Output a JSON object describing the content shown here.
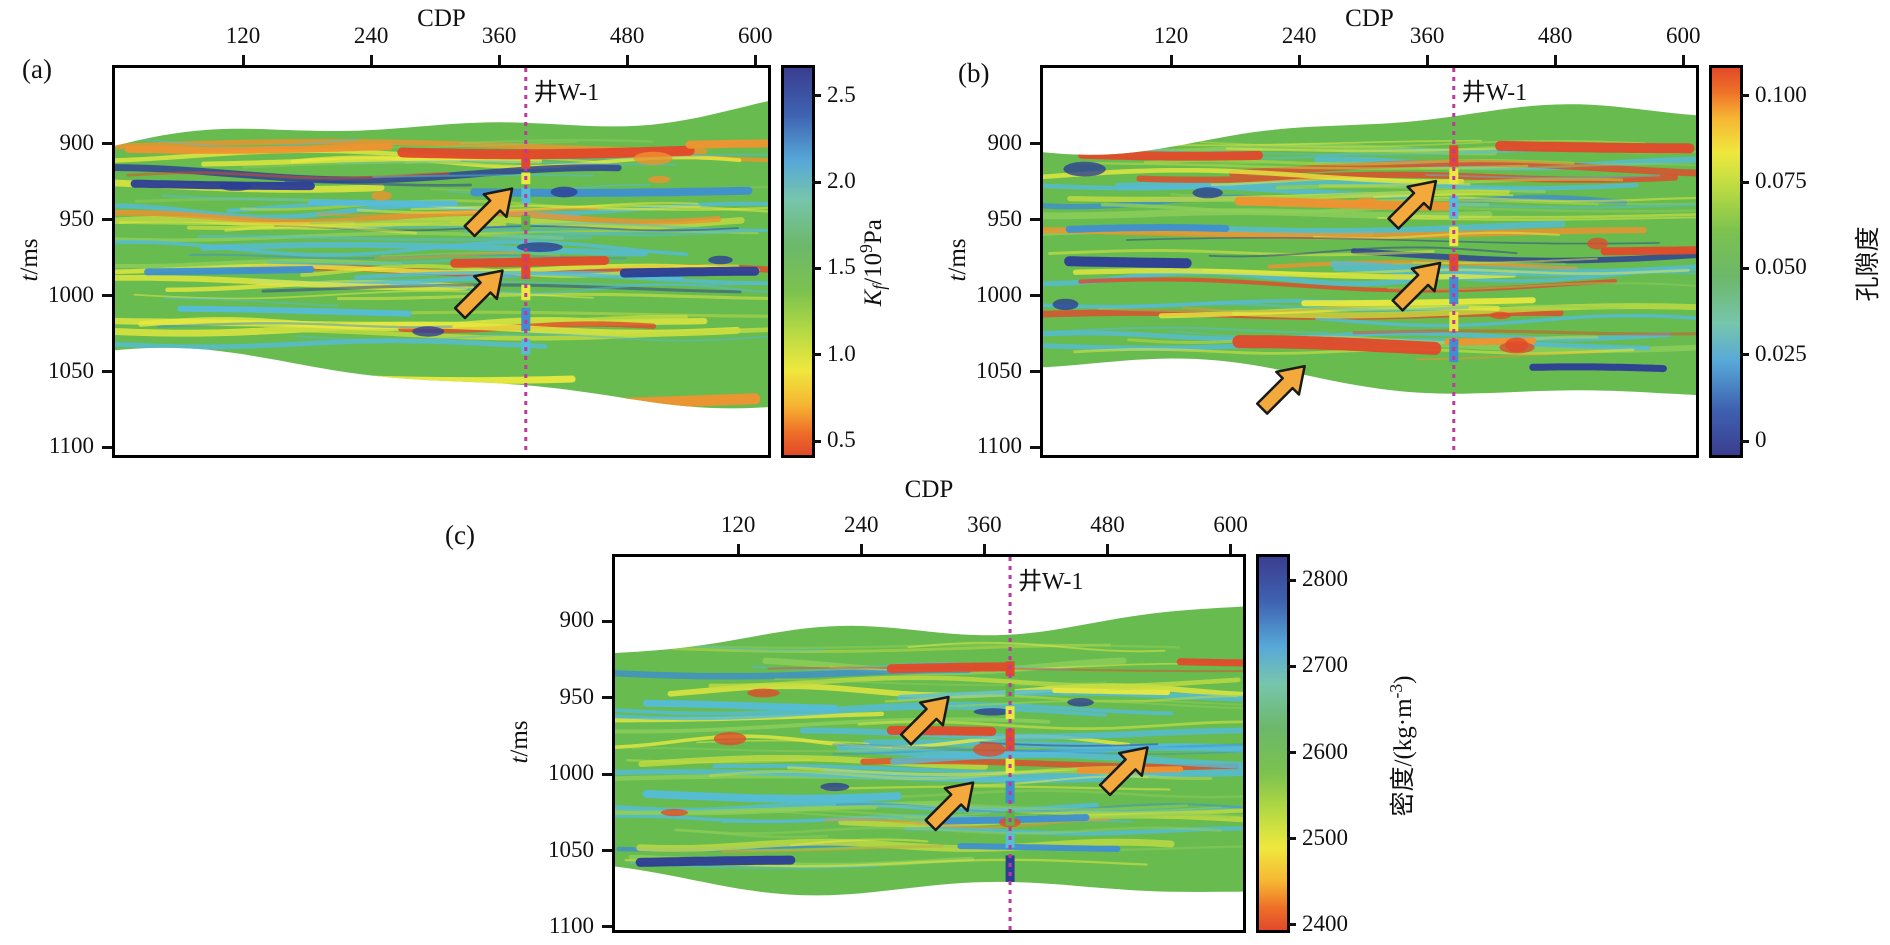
{
  "figure": {
    "background": "#ffffff",
    "panels": [
      {
        "id": "a",
        "tag": "(a)",
        "x_title": "CDP",
        "y_title": "t/ms",
        "y_title_parts": [
          [
            "t",
            "i"
          ],
          [
            "/ms",
            ""
          ]
        ],
        "x_tick_labels": [
          "120",
          "240",
          "360",
          "480",
          "600"
        ],
        "y_tick_labels": [
          "900",
          "950",
          "1000",
          "1050",
          "1100"
        ],
        "well_label": "井W-1",
        "colorbar_title": "Kf/10⁹Pa",
        "colorbar_title_parts": [
          [
            "K",
            "i"
          ],
          [
            "f",
            "isub"
          ],
          [
            "/10",
            ""
          ],
          [
            "9",
            "sup"
          ],
          [
            "Pa",
            ""
          ]
        ],
        "colorbar_tick_labels": [
          "2.5",
          "2.0",
          "1.5",
          "1.0",
          "0.5"
        ]
      },
      {
        "id": "b",
        "tag": "(b)",
        "x_title": "CDP",
        "y_title": "t/ms",
        "y_title_parts": [
          [
            "t",
            "i"
          ],
          [
            "/ms",
            ""
          ]
        ],
        "x_tick_labels": [
          "120",
          "240",
          "360",
          "480",
          "600"
        ],
        "y_tick_labels": [
          "900",
          "950",
          "1000",
          "1050",
          "1100"
        ],
        "well_label": "井W-1",
        "colorbar_title": "孔隙度",
        "colorbar_title_parts": [
          [
            "孔隙度",
            ""
          ]
        ],
        "colorbar_tick_labels": [
          "0.100",
          "0.075",
          "0.050",
          "0.025",
          "0"
        ]
      },
      {
        "id": "c",
        "tag": "(c)",
        "x_title": "CDP",
        "y_title": "t/ms",
        "y_title_parts": [
          [
            "t",
            "i"
          ],
          [
            "/ms",
            ""
          ]
        ],
        "x_tick_labels": [
          "120",
          "240",
          "360",
          "480",
          "600"
        ],
        "y_tick_labels": [
          "900",
          "950",
          "1000",
          "1050",
          "1100"
        ],
        "well_label": "井W-1",
        "colorbar_title": "密度/(kg·m⁻³)",
        "colorbar_title_parts": [
          [
            "密度/(kg·m",
            ""
          ],
          [
            "-3",
            "sup"
          ],
          [
            ")",
            ""
          ]
        ],
        "colorbar_tick_labels": [
          "2800",
          "2700",
          "2600",
          "2500",
          "2400"
        ]
      }
    ]
  },
  "chart_data": [
    {
      "type": "heatmap",
      "panel": "(a)",
      "xlabel": "CDP",
      "ylabel": "t/ms",
      "x_ticks": [
        120,
        240,
        360,
        480,
        600
      ],
      "y_ticks": [
        900,
        950,
        1000,
        1050,
        1100
      ],
      "x_range": [
        0,
        612
      ],
      "y_range_ms": [
        850,
        1105
      ],
      "grid": false,
      "colorbar": {
        "label": "Kf/10⁹Pa",
        "tick_values": [
          2.5,
          2.0,
          1.5,
          1.0,
          0.5
        ],
        "vmin": 0.42,
        "vmax": 2.66,
        "red_at_top": false
      },
      "well": {
        "label": "井W-1",
        "cdp": 385
      },
      "annotation_arrows": [
        {
          "cdp": 353,
          "t_ms": 943
        },
        {
          "cdp": 344,
          "t_ms": 997
        }
      ]
    },
    {
      "type": "heatmap",
      "panel": "(b)",
      "xlabel": "CDP",
      "ylabel": "t/ms",
      "x_ticks": [
        120,
        240,
        360,
        480,
        600
      ],
      "y_ticks": [
        900,
        950,
        1000,
        1050,
        1100
      ],
      "x_range": [
        0,
        612
      ],
      "y_range_ms": [
        850,
        1105
      ],
      "grid": false,
      "colorbar": {
        "label": "孔隙度",
        "tick_values": [
          0.1,
          0.075,
          0.05,
          0.025,
          0
        ],
        "vmin": -0.004,
        "vmax": 0.108,
        "red_at_top": true
      },
      "well": {
        "label": "井W-1",
        "cdp": 385
      },
      "annotation_arrows": [
        {
          "cdp": 349,
          "t_ms": 938
        },
        {
          "cdp": 353,
          "t_ms": 992
        },
        {
          "cdp": 226,
          "t_ms": 1060
        }
      ]
    },
    {
      "type": "heatmap",
      "panel": "(c)",
      "xlabel": "CDP",
      "ylabel": "t/ms",
      "x_ticks": [
        120,
        240,
        360,
        480,
        600
      ],
      "y_ticks": [
        900,
        950,
        1000,
        1050,
        1100
      ],
      "x_range": [
        0,
        612
      ],
      "y_range_ms": [
        858,
        1102
      ],
      "grid": false,
      "colorbar": {
        "label": "密度/(kg·m⁻³)",
        "tick_values": [
          2800,
          2700,
          2600,
          2500,
          2400
        ],
        "vmin": 2394,
        "vmax": 2827,
        "red_at_top": false
      },
      "well": {
        "label": "井W-1",
        "cdp": 385
      },
      "annotation_arrows": [
        {
          "cdp": 305,
          "t_ms": 963
        },
        {
          "cdp": 329,
          "t_ms": 1019
        },
        {
          "cdp": 499,
          "t_ms": 996
        }
      ]
    }
  ],
  "colors": {
    "axis": "#111111",
    "text": "#111111",
    "well_line": "#bc3a9e",
    "arrow_fill": "#f4a93d",
    "arrow_stroke": "#1a1a1a",
    "seismic_base": "#67bb4f",
    "seismic_palette": {
      "lightgreen": "#8fce5a",
      "green": "#5fb24a",
      "cyan": "#55bcd9",
      "skyblue": "#3f8fd0",
      "navy": "#2c3c96",
      "yellow": "#e9e93f",
      "yellowgreen": "#c3dc41",
      "orange": "#f0922f",
      "red": "#e2492a"
    },
    "colorbar_stops": [
      [
        "#3a3e90",
        0
      ],
      [
        "#3f62b1",
        0.12
      ],
      [
        "#57a8d8",
        0.24
      ],
      [
        "#77c5ac",
        0.34
      ],
      [
        "#6cb86a",
        0.46
      ],
      [
        "#7cc24f",
        0.58
      ],
      [
        "#b5d943",
        0.68
      ],
      [
        "#efe83e",
        0.78
      ],
      [
        "#f6b633",
        0.87
      ],
      [
        "#ee7028",
        0.94
      ],
      [
        "#e2492a",
        1
      ]
    ]
  }
}
